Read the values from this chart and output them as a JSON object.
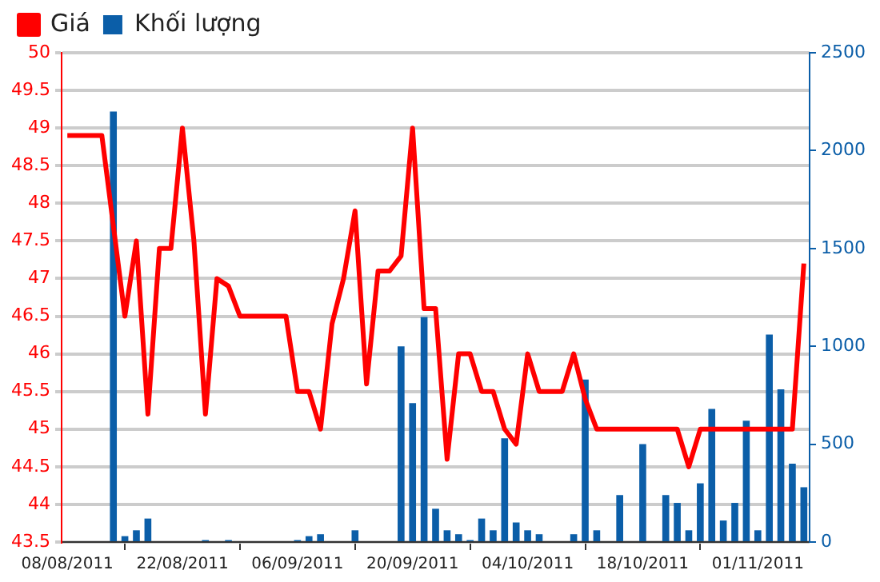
{
  "chart_data": {
    "type": "line",
    "categories": [
      "08/08/2011",
      null,
      null,
      null,
      null,
      null,
      null,
      null,
      null,
      null,
      "22/08/2011",
      null,
      null,
      null,
      null,
      null,
      null,
      null,
      null,
      null,
      "06/09/2011",
      null,
      null,
      null,
      null,
      null,
      null,
      null,
      null,
      null,
      "20/09/2011",
      null,
      null,
      null,
      null,
      null,
      null,
      null,
      null,
      null,
      "04/10/2011",
      null,
      null,
      null,
      null,
      null,
      null,
      null,
      null,
      null,
      "18/10/2011",
      null,
      null,
      null,
      null,
      null,
      null,
      null,
      null,
      null,
      "01/11/2011",
      null,
      null,
      null,
      null
    ],
    "series": [
      {
        "name": "Giá",
        "color": "#ff0000",
        "axis": "y",
        "values": [
          48.9,
          48.9,
          48.9,
          48.9,
          47.7,
          46.5,
          47.5,
          45.2,
          47.4,
          47.4,
          49.0,
          47.5,
          45.2,
          47.0,
          46.9,
          46.5,
          46.5,
          46.5,
          46.5,
          46.5,
          45.5,
          45.5,
          45.0,
          46.4,
          47.0,
          47.9,
          45.6,
          47.1,
          47.1,
          47.3,
          49.0,
          46.6,
          46.6,
          44.6,
          46.0,
          46.0,
          45.5,
          45.5,
          45.0,
          44.8,
          46.0,
          45.5,
          45.5,
          45.5,
          46.0,
          45.4,
          45.0,
          45.0,
          45.0,
          45.0,
          45.0,
          45.0,
          45.0,
          45.0,
          44.5,
          45.0,
          45.0,
          45.0,
          45.0,
          45.0,
          45.0,
          45.0,
          45.0,
          45.0,
          47.2
        ]
      },
      {
        "name": "Khối lượng",
        "type": "bar",
        "color": "#0b5ea8",
        "axis": "y2",
        "values": [
          null,
          null,
          null,
          null,
          2200,
          30,
          60,
          120,
          null,
          null,
          null,
          null,
          10,
          null,
          10,
          null,
          null,
          null,
          null,
          null,
          10,
          30,
          40,
          null,
          null,
          60,
          null,
          null,
          null,
          1000,
          710,
          1150,
          170,
          60,
          40,
          10,
          120,
          60,
          530,
          100,
          60,
          40,
          null,
          null,
          40,
          830,
          60,
          null,
          240,
          null,
          500,
          null,
          240,
          200,
          60,
          300,
          680,
          110,
          200,
          620,
          60,
          1060,
          780,
          400,
          280
        ]
      }
    ],
    "ylim": [
      43.5,
      50
    ],
    "yticks": [
      43.5,
      44,
      44.5,
      45,
      45.5,
      46,
      46.5,
      47,
      47.5,
      48,
      48.5,
      49,
      49.5,
      50
    ],
    "y2lim": [
      0,
      2500
    ],
    "y2ticks": [
      0,
      500,
      1000,
      1500,
      2000,
      2500
    ],
    "grid": "y",
    "legend": "top left",
    "marker": "none",
    "line_style": "solid"
  }
}
